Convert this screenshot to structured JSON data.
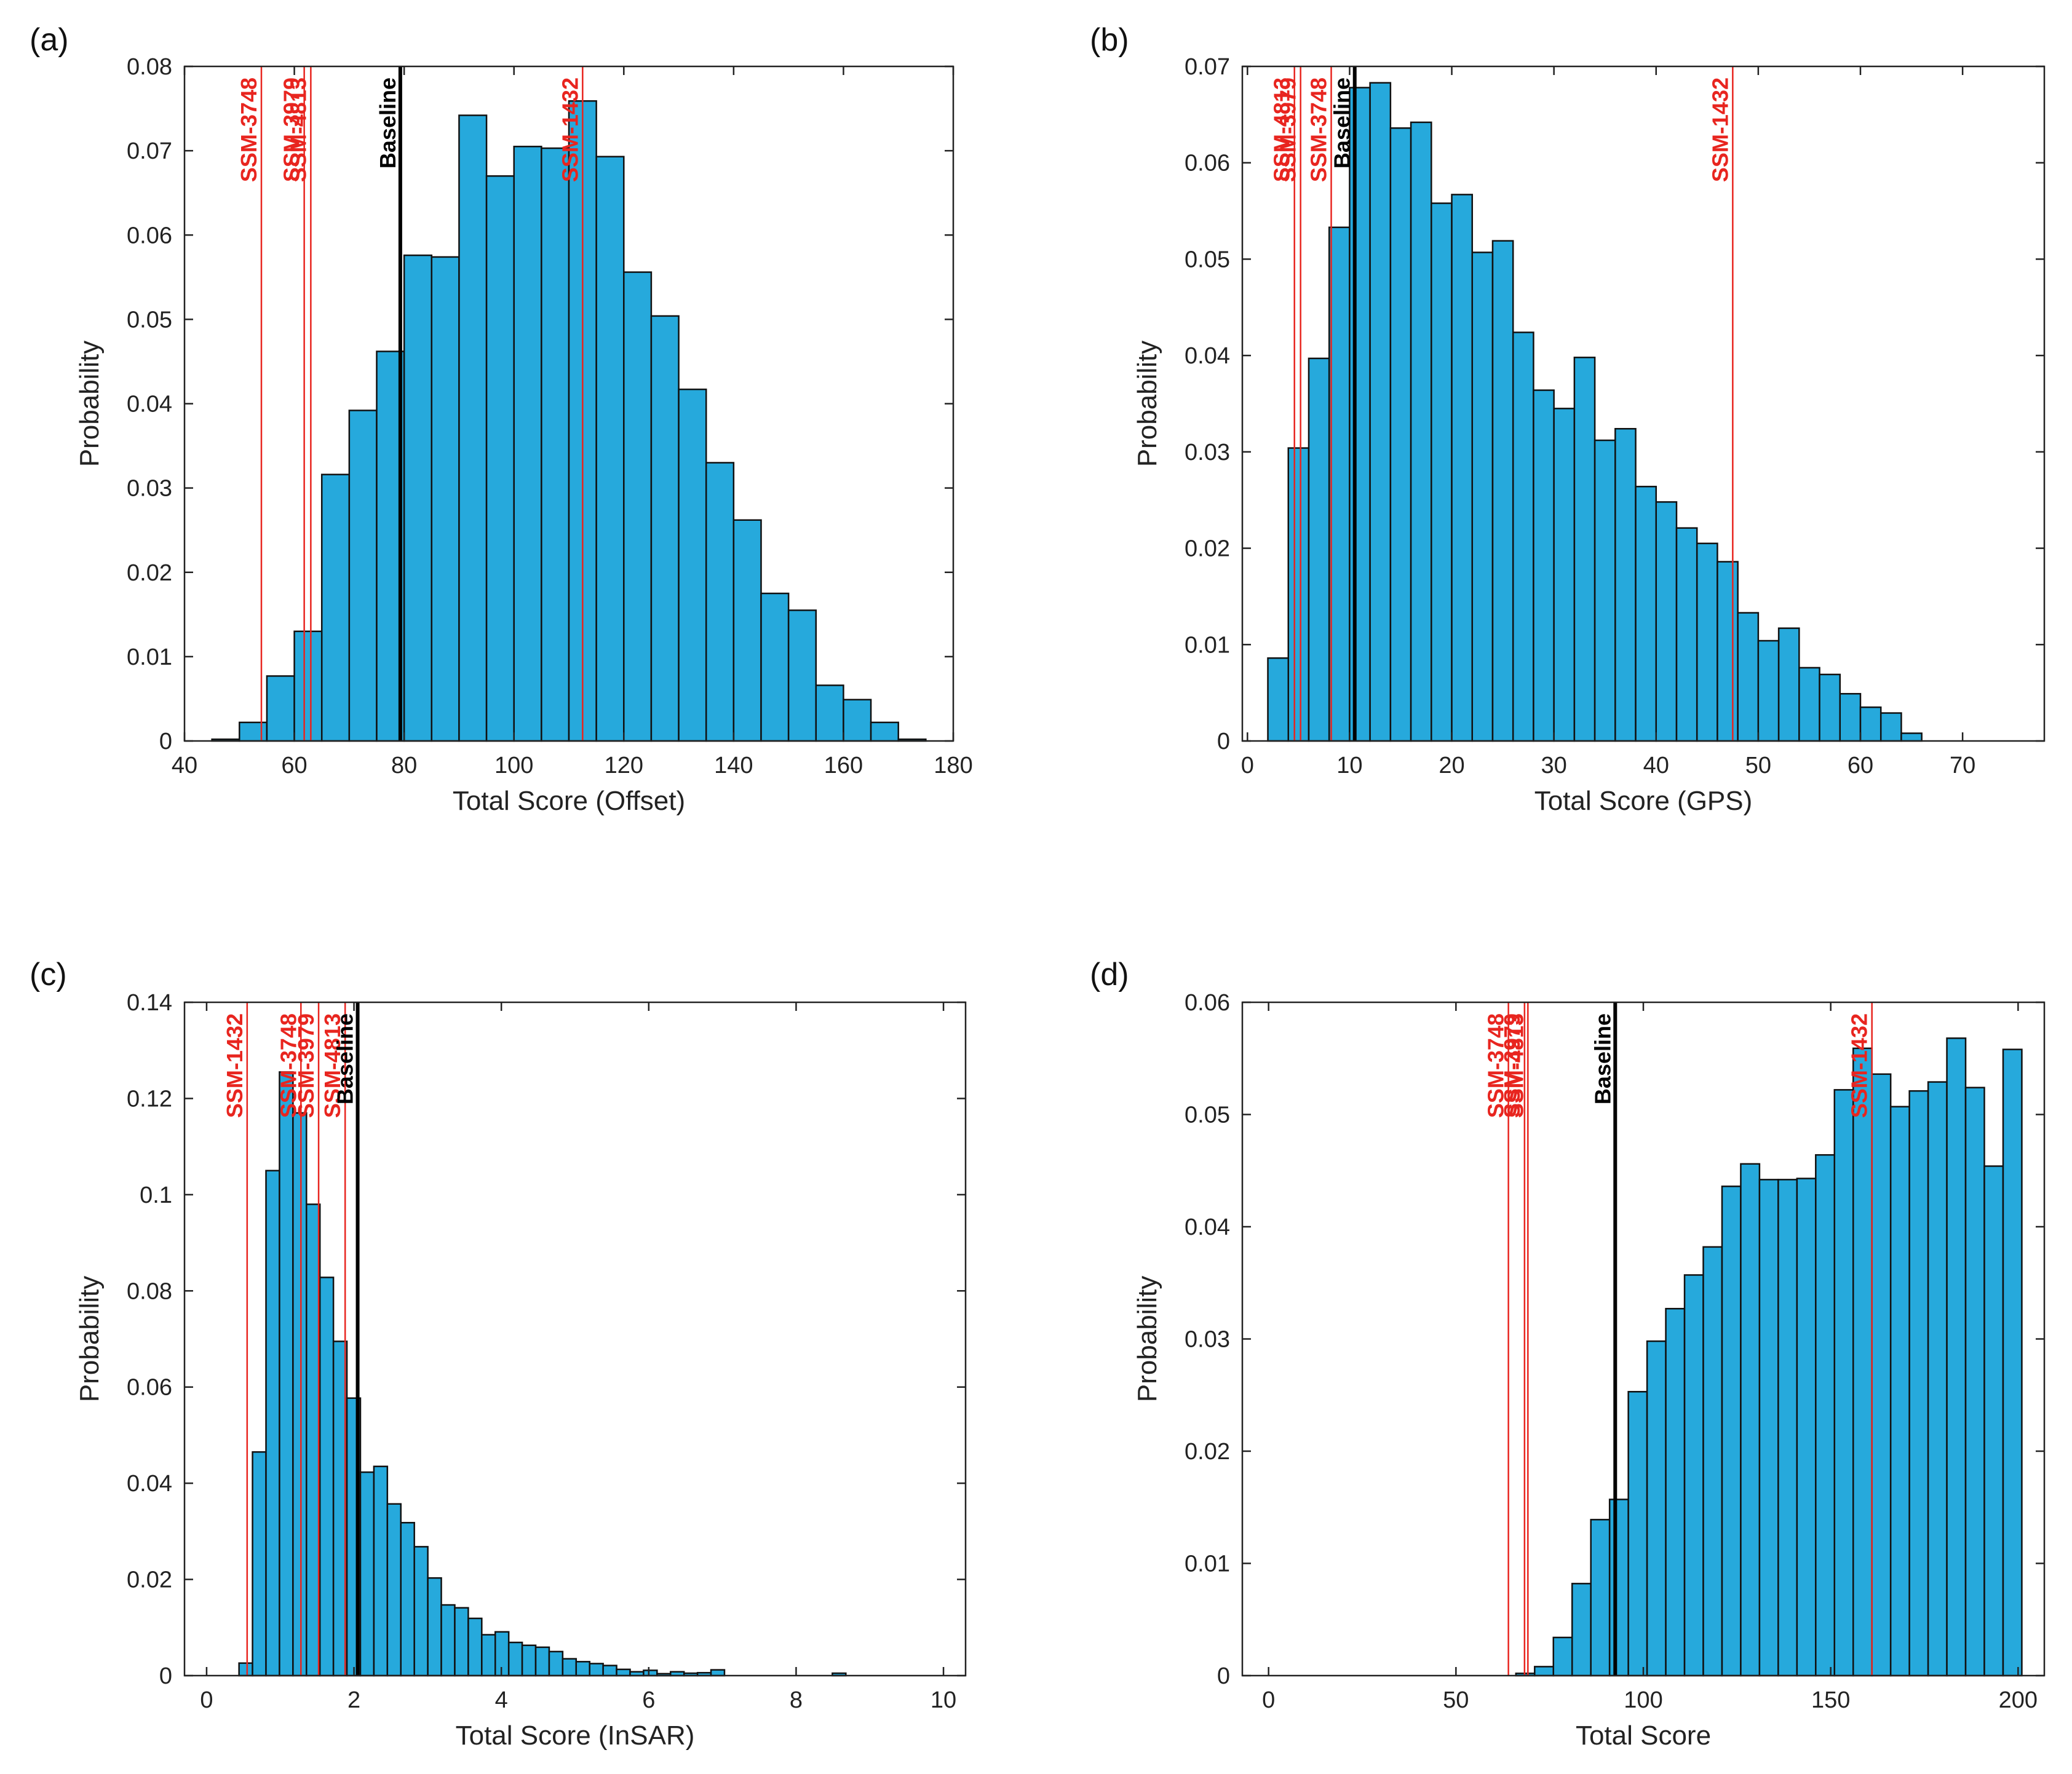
{
  "chart_data": [
    {
      "id": "a",
      "panel_label": "(a)",
      "type": "bar",
      "title": "",
      "xlabel": "Total Score (Offset)",
      "ylabel": "Probability",
      "xlim": [
        40,
        180
      ],
      "ylim": [
        0,
        0.08
      ],
      "xticks": [
        40,
        60,
        80,
        100,
        120,
        140,
        160,
        180
      ],
      "xtick_labels": [
        "40",
        "60",
        "80",
        "100",
        "120",
        "140",
        "160",
        "180"
      ],
      "yticks": [
        0,
        0.01,
        0.02,
        0.03,
        0.04,
        0.05,
        0.06,
        0.07,
        0.08
      ],
      "ytick_labels": [
        "0",
        "0.01",
        "0.02",
        "0.03",
        "0.04",
        "0.05",
        "0.06",
        "0.07",
        "0.08"
      ],
      "bin_start": 45,
      "bin_width": 5,
      "values": [
        0.0002,
        0.0022,
        0.0077,
        0.013,
        0.0316,
        0.0392,
        0.0462,
        0.0576,
        0.0574,
        0.0742,
        0.067,
        0.0705,
        0.0703,
        0.0759,
        0.0693,
        0.0556,
        0.0504,
        0.0417,
        0.033,
        0.0262,
        0.0175,
        0.0155,
        0.0066,
        0.0049,
        0.0022,
        0.0002
      ],
      "markers": [
        {
          "label": "SSM-3748",
          "x": 54,
          "color": "#e8251f"
        },
        {
          "label": "SSM-3979",
          "x": 61.8,
          "color": "#e8251f"
        },
        {
          "label": "SSM-4813",
          "x": 63,
          "color": "#e8251f"
        },
        {
          "label": "Baseline",
          "x": 79.3,
          "color": "#000000"
        },
        {
          "label": "SSM-1432",
          "x": 112.5,
          "color": "#e8251f"
        }
      ]
    },
    {
      "id": "b",
      "panel_label": "(b)",
      "type": "bar",
      "title": "",
      "xlabel": "Total Score (GPS)",
      "ylabel": "Probability",
      "xlim": [
        -0.5,
        78
      ],
      "ylim": [
        0,
        0.07
      ],
      "xticks": [
        0,
        10,
        20,
        30,
        40,
        50,
        60,
        70
      ],
      "xtick_labels": [
        "0",
        "10",
        "20",
        "30",
        "40",
        "50",
        "60",
        "70"
      ],
      "yticks": [
        0,
        0.01,
        0.02,
        0.03,
        0.04,
        0.05,
        0.06,
        0.07
      ],
      "ytick_labels": [
        "0",
        "0.01",
        "0.02",
        "0.03",
        "0.04",
        "0.05",
        "0.06",
        "0.07"
      ],
      "bin_start": 2,
      "bin_width": 2,
      "values": [
        0.0086,
        0.0304,
        0.0397,
        0.0533,
        0.0678,
        0.0683,
        0.0636,
        0.0642,
        0.0558,
        0.0567,
        0.0507,
        0.0519,
        0.0424,
        0.0364,
        0.0345,
        0.0398,
        0.0312,
        0.0324,
        0.0264,
        0.0248,
        0.0221,
        0.0205,
        0.0186,
        0.0133,
        0.0104,
        0.0117,
        0.0076,
        0.0069,
        0.0049,
        0.0035,
        0.0029,
        0.0008
      ],
      "markers": [
        {
          "label": "SSM-4813",
          "x": 4.6,
          "color": "#e8251f"
        },
        {
          "label": "SSM-3979",
          "x": 5.2,
          "color": "#e8251f"
        },
        {
          "label": "SSM-3748",
          "x": 8.2,
          "color": "#e8251f"
        },
        {
          "label": "Baseline",
          "x": 10.5,
          "color": "#000000"
        },
        {
          "label": "SSM-1432",
          "x": 47.5,
          "color": "#e8251f"
        }
      ]
    },
    {
      "id": "c",
      "panel_label": "(c)",
      "type": "bar",
      "title": "",
      "xlabel": "Total Score (InSAR)",
      "ylabel": "Probability",
      "xlim": [
        -0.3,
        10.3
      ],
      "ylim": [
        0,
        0.14
      ],
      "xticks": [
        0,
        2,
        4,
        6,
        8,
        10
      ],
      "xtick_labels": [
        "0",
        "2",
        "4",
        "6",
        "8",
        "10"
      ],
      "yticks": [
        0,
        0.02,
        0.04,
        0.06,
        0.08,
        0.1,
        0.12,
        0.14
      ],
      "ytick_labels": [
        "0",
        "0.02",
        "0.04",
        "0.06",
        "0.08",
        "0.1",
        "0.12",
        "0.14"
      ],
      "bin_start": 0.44,
      "bin_width": 0.183,
      "values": [
        0.0026,
        0.0465,
        0.105,
        0.1255,
        0.117,
        0.098,
        0.0828,
        0.0695,
        0.0577,
        0.0423,
        0.0435,
        0.0357,
        0.0318,
        0.0268,
        0.0203,
        0.0147,
        0.0141,
        0.0119,
        0.0085,
        0.0091,
        0.0069,
        0.0063,
        0.0059,
        0.005,
        0.0035,
        0.0029,
        0.0025,
        0.0021,
        0.0013,
        0.0008,
        0.0011,
        0.0004,
        0.0008,
        0.0005,
        0.0006,
        0.0012,
        0.0,
        0.0,
        0.0,
        0.0,
        0.0,
        0.0,
        0.0,
        0.0,
        0.0005
      ],
      "markers": [
        {
          "label": "SSM-1432",
          "x": 0.55,
          "color": "#e8251f"
        },
        {
          "label": "SSM-3748",
          "x": 1.28,
          "color": "#e8251f"
        },
        {
          "label": "SSM-3979",
          "x": 1.52,
          "color": "#e8251f"
        },
        {
          "label": "SSM-4813",
          "x": 1.88,
          "color": "#e8251f"
        },
        {
          "label": "Baseline",
          "x": 2.05,
          "color": "#000000"
        }
      ]
    },
    {
      "id": "d",
      "panel_label": "(d)",
      "type": "bar",
      "title": "",
      "xlabel": "Total Score",
      "ylabel": "Probability",
      "xlim": [
        -7,
        207
      ],
      "ylim": [
        0,
        0.06
      ],
      "xticks": [
        0,
        50,
        100,
        150,
        200
      ],
      "xtick_labels": [
        "0",
        "50",
        "100",
        "150",
        "200"
      ],
      "yticks": [
        0,
        0.01,
        0.02,
        0.03,
        0.04,
        0.05,
        0.06
      ],
      "ytick_labels": [
        "0",
        "0.01",
        "0.02",
        "0.03",
        "0.04",
        "0.05",
        "0.06"
      ],
      "bin_start": 66,
      "bin_width": 5,
      "values": [
        0.0002,
        0.0008,
        0.0034,
        0.0082,
        0.0139,
        0.0157,
        0.0253,
        0.0298,
        0.0327,
        0.0357,
        0.0382,
        0.0436,
        0.0456,
        0.0442,
        0.0442,
        0.0443,
        0.0464,
        0.0522,
        0.0559,
        0.0536,
        0.0507,
        0.0521,
        0.0529,
        0.0568,
        0.0524,
        0.0454,
        0.0558
      ],
      "markers": [
        {
          "label": "SSM-3748",
          "x": 64,
          "color": "#e8251f"
        },
        {
          "label": "SSM-3979",
          "x": 68.3,
          "color": "#e8251f"
        },
        {
          "label": "SSM-4813",
          "x": 69.2,
          "color": "#e8251f"
        },
        {
          "label": "Baseline",
          "x": 92.5,
          "color": "#000000"
        },
        {
          "label": "SSM-1432",
          "x": 161,
          "color": "#e8251f"
        }
      ]
    }
  ]
}
